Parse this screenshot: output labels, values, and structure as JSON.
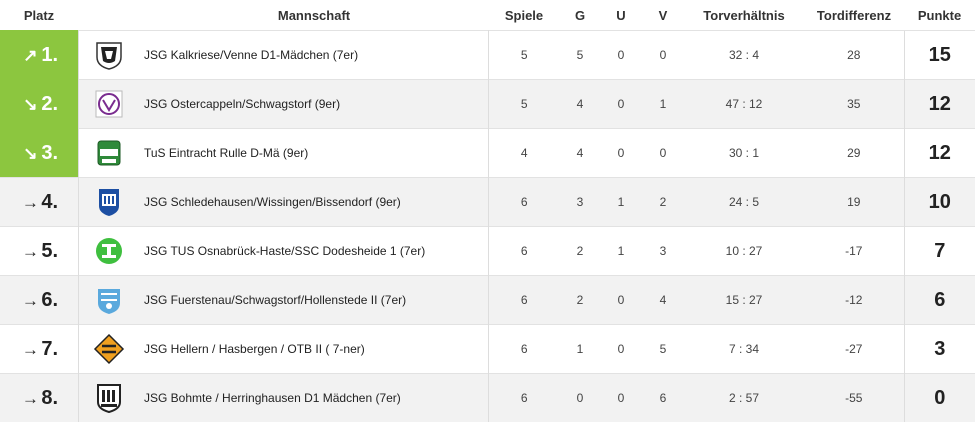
{
  "headers": {
    "place": "Platz",
    "team": "Mannschaft",
    "games": "Spiele",
    "won": "G",
    "draw": "U",
    "lost": "V",
    "goals": "Torverhältnis",
    "diff": "Tordifferenz",
    "points": "Punkte"
  },
  "colors": {
    "promotion": "#8cc63f",
    "alt_row": "#f2f2f2"
  },
  "rows": [
    {
      "arrow": "↗",
      "place": "1.",
      "team": "JSG Kalkriese/Venne D1-Mädchen (7er)",
      "games": "5",
      "won": "5",
      "draw": "0",
      "lost": "0",
      "goals": "32 : 4",
      "diff": "28",
      "points": "15",
      "logo_icon": "club-crest-icon"
    },
    {
      "arrow": "↘",
      "place": "2.",
      "team": "JSG Ostercappeln/Schwagstorf (9er)",
      "games": "5",
      "won": "4",
      "draw": "0",
      "lost": "1",
      "goals": "47 : 12",
      "diff": "35",
      "points": "12",
      "logo_icon": "club-crest-icon"
    },
    {
      "arrow": "↘",
      "place": "3.",
      "team": "TuS Eintracht Rulle D-Mä (9er)",
      "games": "4",
      "won": "4",
      "draw": "0",
      "lost": "0",
      "goals": "30 : 1",
      "diff": "29",
      "points": "12",
      "logo_icon": "club-crest-icon"
    },
    {
      "arrow": "→",
      "place": "4.",
      "team": "JSG Schledehausen/Wissingen/Bissendorf (9er)",
      "games": "6",
      "won": "3",
      "draw": "1",
      "lost": "2",
      "goals": "24 : 5",
      "diff": "19",
      "points": "10",
      "logo_icon": "club-crest-icon"
    },
    {
      "arrow": "→",
      "place": "5.",
      "team": "JSG TUS Osnabrück-Haste/SSC Dodesheide 1 (7er)",
      "games": "6",
      "won": "2",
      "draw": "1",
      "lost": "3",
      "goals": "10 : 27",
      "diff": "-17",
      "points": "7",
      "logo_icon": "club-crest-icon"
    },
    {
      "arrow": "→",
      "place": "6.",
      "team": "JSG Fuerstenau/Schwagstorf/Hollenstede II (7er)",
      "games": "6",
      "won": "2",
      "draw": "0",
      "lost": "4",
      "goals": "15 : 27",
      "diff": "-12",
      "points": "6",
      "logo_icon": "club-crest-icon"
    },
    {
      "arrow": "→",
      "place": "7.",
      "team": "JSG Hellern / Hasbergen / OTB II ( 7-ner)",
      "games": "6",
      "won": "1",
      "draw": "0",
      "lost": "5",
      "goals": "7 : 34",
      "diff": "-27",
      "points": "3",
      "logo_icon": "club-crest-icon"
    },
    {
      "arrow": "→",
      "place": "8.",
      "team": "JSG Bohmte / Herringhausen D1 Mädchen (7er)",
      "games": "6",
      "won": "0",
      "draw": "0",
      "lost": "6",
      "goals": "2 : 57",
      "diff": "-55",
      "points": "0",
      "logo_icon": "club-crest-icon"
    }
  ]
}
